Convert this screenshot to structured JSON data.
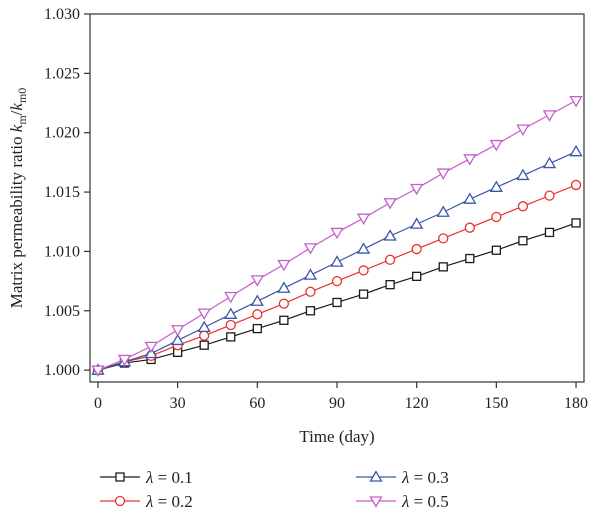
{
  "chart_data": {
    "type": "line",
    "xlabel": "Time (day)",
    "ylabel_prefix": "Matrix permeability ratio ",
    "ylabel_k1": "k",
    "ylabel_sub1": "m",
    "ylabel_slash": "/",
    "ylabel_k2": "k",
    "ylabel_sub2": "m0",
    "xlim": [
      -3,
      183
    ],
    "ylim": [
      0.999,
      1.03
    ],
    "xticks": [
      0,
      30,
      60,
      90,
      120,
      150,
      180
    ],
    "xtick_labels": [
      "0",
      "30",
      "60",
      "90",
      "120",
      "150",
      "180"
    ],
    "yticks": [
      1.0,
      1.005,
      1.01,
      1.015,
      1.02,
      1.025,
      1.03
    ],
    "ytick_labels": [
      "1.000",
      "1.005",
      "1.010",
      "1.015",
      "1.020",
      "1.025",
      "1.030"
    ],
    "grid": false,
    "legend_position": "bottom",
    "x": [
      0,
      10,
      20,
      30,
      40,
      50,
      60,
      70,
      80,
      90,
      100,
      110,
      120,
      130,
      140,
      150,
      160,
      170,
      180
    ],
    "series": [
      {
        "name": "λ = 0.1",
        "symbol": "λ",
        "eq": " = 0.1",
        "color": "#1a1a1a",
        "marker": "square",
        "values": [
          1.0,
          1.0006,
          1.0009,
          1.0015,
          1.0021,
          1.0028,
          1.0035,
          1.0042,
          1.005,
          1.0057,
          1.0064,
          1.0072,
          1.0079,
          1.0087,
          1.0094,
          1.0101,
          1.0109,
          1.0116,
          1.0124
        ]
      },
      {
        "name": "λ = 0.2",
        "symbol": "λ",
        "eq": " = 0.2",
        "color": "#e8312f",
        "marker": "circle",
        "values": [
          1.0,
          1.0007,
          1.0012,
          1.0021,
          1.0029,
          1.0038,
          1.0047,
          1.0056,
          1.0066,
          1.0075,
          1.0084,
          1.0093,
          1.0102,
          1.0111,
          1.012,
          1.0129,
          1.0138,
          1.0147,
          1.0156
        ]
      },
      {
        "name": "λ = 0.3",
        "symbol": "λ",
        "eq": " = 0.3",
        "color": "#3a56a8",
        "marker": "triangle-up",
        "values": [
          1.0,
          1.0007,
          1.0014,
          1.0025,
          1.0036,
          1.0047,
          1.0058,
          1.0069,
          1.008,
          1.0091,
          1.0102,
          1.0113,
          1.0123,
          1.0133,
          1.0144,
          1.0154,
          1.0164,
          1.0174,
          1.0184
        ]
      },
      {
        "name": "λ = 0.5",
        "symbol": "λ",
        "eq": " = 0.5",
        "color": "#c45ec8",
        "marker": "triangle-down",
        "values": [
          1.0,
          1.0009,
          1.002,
          1.0034,
          1.0048,
          1.0062,
          1.0076,
          1.0089,
          1.0103,
          1.0116,
          1.0128,
          1.0141,
          1.0153,
          1.0166,
          1.0178,
          1.019,
          1.0203,
          1.0215,
          1.0227
        ]
      }
    ]
  }
}
